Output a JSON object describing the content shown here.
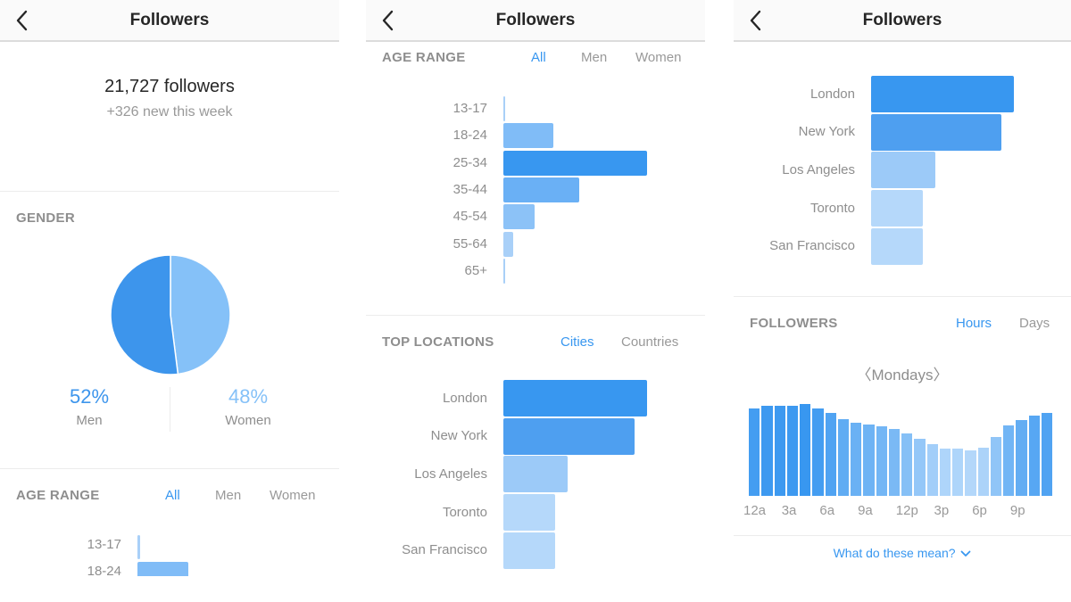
{
  "app": {
    "title": "Followers"
  },
  "colors": {
    "accent": "#3897f0",
    "bar_dark": "#3897f0",
    "bar_mid": "#4e9ff0",
    "bar_light": "#9ccaf8",
    "bar_lighter": "#b5d8fa",
    "pie_men": "#3d95ec",
    "pie_women": "#85c1f8"
  },
  "panel1": {
    "header": {
      "title": "Followers",
      "back_icon": "chevron-left-icon"
    },
    "summary": {
      "count": "21,727 followers",
      "delta": "+326 new this week"
    },
    "gender": {
      "title": "GENDER",
      "men": {
        "pct": "52%",
        "label": "Men"
      },
      "women": {
        "pct": "48%",
        "label": "Women"
      }
    },
    "age": {
      "title": "AGE RANGE",
      "tabs": [
        "All",
        "Men",
        "Women"
      ],
      "active_tab": "All",
      "rows": [
        "13-17",
        "18-24"
      ]
    }
  },
  "panel2": {
    "header": {
      "title": "Followers",
      "back_icon": "chevron-left-icon"
    },
    "age": {
      "title": "AGE RANGE",
      "tabs": [
        "All",
        "Men",
        "Women"
      ],
      "active_tab": "All",
      "rows": [
        "13-17",
        "18-24",
        "25-34",
        "35-44",
        "45-54",
        "55-64",
        "65+"
      ]
    },
    "locations": {
      "title": "TOP LOCATIONS",
      "tabs": [
        "Cities",
        "Countries"
      ],
      "active_tab": "Cities",
      "rows": [
        "London",
        "New York",
        "Los Angeles",
        "Toronto",
        "San Francisco"
      ]
    }
  },
  "panel3": {
    "header": {
      "title": "Followers",
      "back_icon": "chevron-left-icon"
    },
    "locations": {
      "rows": [
        "London",
        "New York",
        "Los Angeles",
        "Toronto",
        "San Francisco"
      ]
    },
    "followers_time": {
      "title": "FOLLOWERS",
      "tabs": [
        "Hours",
        "Days"
      ],
      "active_tab": "Hours",
      "day_selector": "〈Mondays〉",
      "x_labels": [
        "12a",
        "3a",
        "6a",
        "9a",
        "12p",
        "3p",
        "6p",
        "9p"
      ]
    },
    "help_link": "What do these mean?"
  },
  "chart_data": [
    {
      "type": "pie",
      "title": "GENDER",
      "categories": [
        "Men",
        "Women"
      ],
      "values": [
        52,
        48
      ],
      "colors": [
        "#3d95ec",
        "#85c1f8"
      ]
    },
    {
      "type": "bar",
      "orientation": "horizontal",
      "title": "AGE RANGE",
      "categories": [
        "13-17",
        "18-24",
        "25-34",
        "35-44",
        "45-54",
        "55-64",
        "65+"
      ],
      "values": [
        1,
        35,
        100,
        53,
        22,
        7,
        1
      ],
      "unit": "relative % of max",
      "colors": [
        "#a9d0f8",
        "#80bcf7",
        "#3897f0",
        "#6ab0f5",
        "#8cc2f7",
        "#a9d0f8",
        "#a9d0f8"
      ]
    },
    {
      "type": "bar",
      "orientation": "horizontal",
      "title": "TOP LOCATIONS (Cities)",
      "categories": [
        "London",
        "New York",
        "Los Angeles",
        "Toronto",
        "San Francisco"
      ],
      "values": [
        100,
        91,
        45,
        36,
        36
      ],
      "unit": "relative % of max",
      "colors": [
        "#3897f0",
        "#4e9ff0",
        "#9ccaf8",
        "#b5d8fa",
        "#b5d8fa"
      ]
    },
    {
      "type": "bar",
      "title": "FOLLOWERS (Hours, Mondays)",
      "x": [
        "12a",
        "1a",
        "2a",
        "3a",
        "4a",
        "5a",
        "6a",
        "7a",
        "8a",
        "9a",
        "10a",
        "11a",
        "12p",
        "1p",
        "2p",
        "3p",
        "4p",
        "5p",
        "6p",
        "7p",
        "8p",
        "9p",
        "10p",
        "11p"
      ],
      "values": [
        98,
        101,
        101,
        101,
        103,
        98,
        93,
        86,
        82,
        80,
        78,
        75,
        70,
        64,
        58,
        53,
        53,
        51,
        54,
        66,
        79,
        85,
        90,
        93
      ],
      "unit": "relative height",
      "xlabel": "",
      "ylabel": "",
      "grid": false
    }
  ]
}
